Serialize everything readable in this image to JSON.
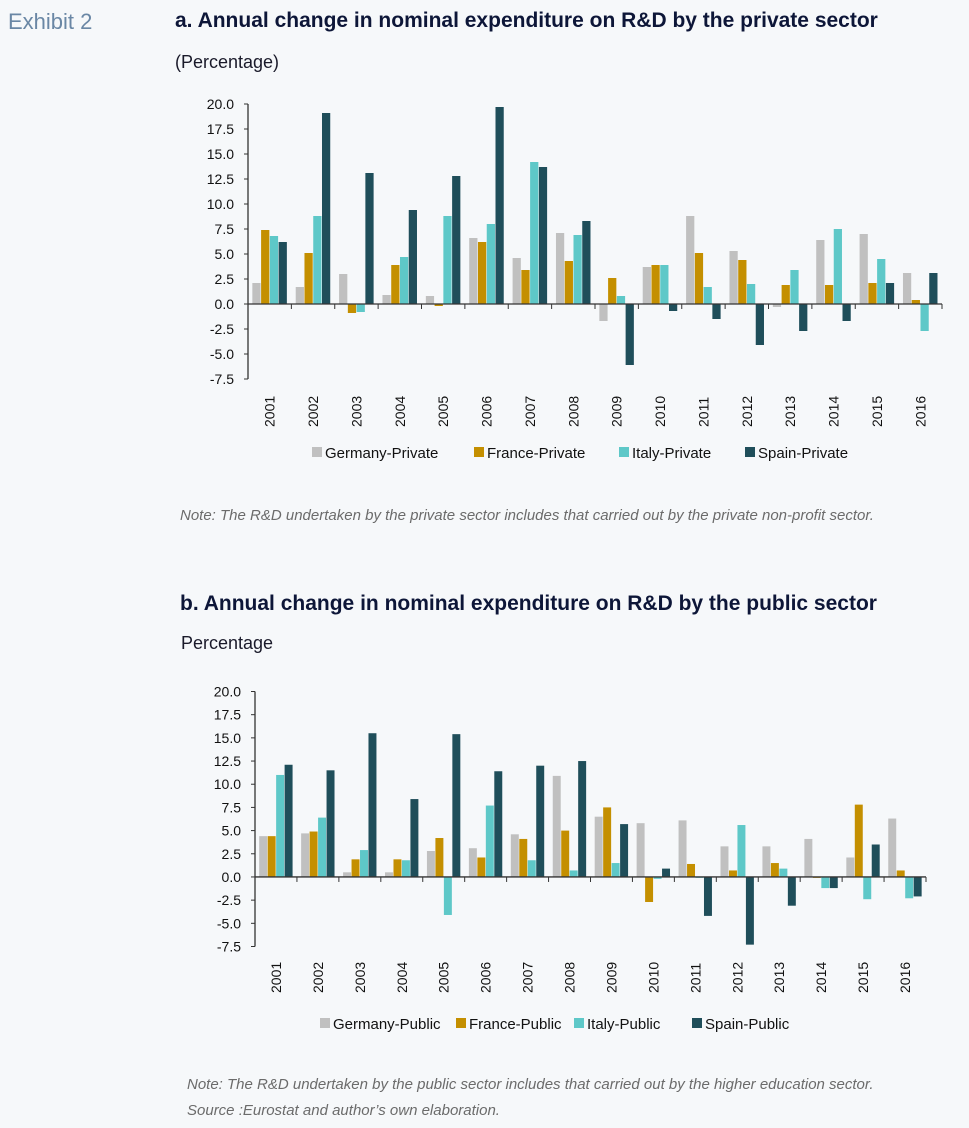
{
  "exhibit_label": "Exhibit 2",
  "colors": {
    "germany": "#c0c0c0",
    "france": "#c48f00",
    "italy": "#5ec8c8",
    "spain": "#1f4e5a"
  },
  "notes": {
    "a": "Note: The R&D undertaken by the private sector includes that carried out by the private non-profit sector.",
    "b": "Note: The R&D undertaken by the public sector includes that carried out by the higher education sector.",
    "source": "Source :Eurostat and author’s own elaboration."
  },
  "chart_data": [
    {
      "type": "bar",
      "title": "a. Annual change in nominal expenditure on R&D by the private sector",
      "ylabel": "(Percentage)",
      "xlabel": "",
      "ylim": [
        -7.5,
        20.0
      ],
      "yticks": [
        "20.0",
        "17.5",
        "15.0",
        "12.5",
        "10.0",
        "7.5",
        "5.0",
        "2.5",
        "0.0",
        "-2.5",
        "-5.0",
        "-7.5"
      ],
      "grid": false,
      "legend": "bottom",
      "categories": [
        "2001",
        "2002",
        "2003",
        "2004",
        "2005",
        "2006",
        "2007",
        "2008",
        "2009",
        "2010",
        "2011",
        "2012",
        "2013",
        "2014",
        "2015",
        "2016"
      ],
      "series": [
        {
          "name": "Germany-Private",
          "color_key": "germany",
          "values": [
            2.1,
            1.7,
            3.0,
            0.9,
            0.8,
            6.6,
            4.6,
            7.1,
            -1.7,
            3.7,
            8.8,
            5.3,
            -0.3,
            6.4,
            7.0,
            3.1
          ]
        },
        {
          "name": "France-Private",
          "color_key": "france",
          "values": [
            7.4,
            5.1,
            -0.9,
            3.9,
            -0.2,
            6.2,
            3.4,
            4.3,
            2.6,
            3.9,
            5.1,
            4.4,
            1.9,
            1.9,
            2.1,
            0.4
          ]
        },
        {
          "name": "Italy-Private",
          "color_key": "italy",
          "values": [
            6.8,
            8.8,
            -0.8,
            4.7,
            8.8,
            8.0,
            14.2,
            6.9,
            0.8,
            3.9,
            1.7,
            2.0,
            3.4,
            7.5,
            4.5,
            -2.7
          ]
        },
        {
          "name": "Spain-Private",
          "color_key": "spain",
          "values": [
            6.2,
            19.1,
            13.1,
            9.4,
            12.8,
            19.7,
            13.7,
            8.3,
            -6.1,
            -0.7,
            -1.5,
            -4.1,
            -2.7,
            -1.7,
            2.1,
            3.1
          ]
        }
      ]
    },
    {
      "type": "bar",
      "title": "b. Annual change in nominal expenditure on R&D by the public sector",
      "ylabel": "Percentage",
      "xlabel": "",
      "ylim": [
        -7.5,
        20.0
      ],
      "yticks": [
        "20.0",
        "17.5",
        "15.0",
        "12.5",
        "10.0",
        "7.5",
        "5.0",
        "2.5",
        "0.0",
        "-2.5",
        "-5.0",
        "-7.5"
      ],
      "grid": false,
      "legend": "bottom",
      "categories": [
        "2001",
        "2002",
        "2003",
        "2004",
        "2005",
        "2006",
        "2007",
        "2008",
        "2009",
        "2010",
        "2011",
        "2012",
        "2013",
        "2014",
        "2015",
        "2016"
      ],
      "series": [
        {
          "name": "Germany-Public",
          "color_key": "germany",
          "values": [
            4.4,
            4.7,
            0.5,
            0.5,
            2.8,
            3.1,
            4.6,
            10.9,
            6.5,
            5.8,
            6.1,
            3.3,
            3.3,
            4.1,
            2.1,
            6.3
          ]
        },
        {
          "name": "France-Public",
          "color_key": "france",
          "values": [
            4.4,
            4.9,
            1.9,
            1.9,
            4.2,
            2.1,
            4.1,
            5.0,
            7.5,
            -2.7,
            1.4,
            0.7,
            1.5,
            -0.1,
            7.8,
            0.7
          ]
        },
        {
          "name": "Italy-Public",
          "color_key": "italy",
          "values": [
            11.0,
            6.4,
            2.9,
            1.8,
            -4.1,
            7.7,
            1.8,
            0.7,
            1.5,
            -0.2,
            -0.1,
            5.6,
            0.9,
            -1.2,
            -2.4,
            -2.3
          ]
        },
        {
          "name": "Spain-Public",
          "color_key": "spain",
          "values": [
            12.1,
            11.5,
            15.5,
            8.4,
            15.4,
            11.4,
            12.0,
            12.5,
            5.7,
            0.9,
            -4.2,
            -7.3,
            -3.1,
            -1.2,
            3.5,
            -2.1
          ]
        }
      ]
    }
  ]
}
